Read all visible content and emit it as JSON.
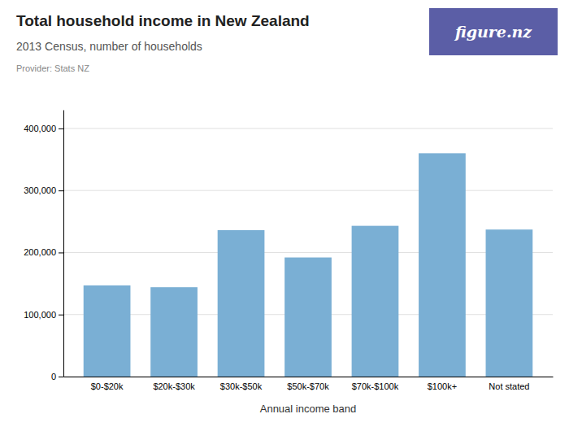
{
  "chart_data": {
    "type": "bar",
    "title": "Total household income in New Zealand",
    "subtitle": "2013 Census, number of households",
    "annotations": [
      "Provider: Stats NZ",
      "figure.nz"
    ],
    "xlabel": "Annual income band",
    "categories": [
      "$0-$20k",
      "$20k-$30k",
      "$30k-$50k",
      "$50k-$70k",
      "$70k-$100k",
      "$100k+",
      "Not stated"
    ],
    "values": [
      147000,
      144000,
      236000,
      192000,
      243000,
      360000,
      237000
    ],
    "color": "#7aafd4",
    "ylim": [
      0,
      430000
    ],
    "yticks": [
      0,
      {
        "value": 100000,
        "label": "100,000"
      },
      {
        "value": 200000,
        "label": "200,000"
      },
      {
        "value": 300000,
        "label": "300,000"
      },
      {
        "value": 400000,
        "label": "400,000"
      }
    ],
    "grid": true
  }
}
